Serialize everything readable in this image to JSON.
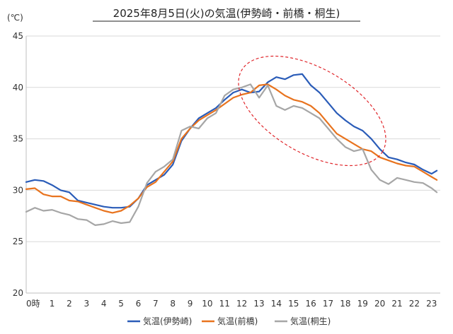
{
  "chart_data": {
    "type": "line",
    "title": "2025年8月5日(火)の気温(伊勢崎・前橋・桐生)",
    "unit_label": "(℃)",
    "ylim": [
      20,
      45
    ],
    "yticks": [
      "20",
      "25",
      "30",
      "35",
      "40",
      "45"
    ],
    "xlim": [
      0,
      24
    ],
    "xticks": [
      "0時",
      "1",
      "2",
      "3",
      "4",
      "5",
      "6",
      "7",
      "8",
      "9",
      "10",
      "11",
      "12",
      "13",
      "14",
      "15",
      "16",
      "17",
      "18",
      "19",
      "20",
      "21",
      "22",
      "23"
    ],
    "grid": "horizontal",
    "legend_position": "bottom",
    "annotation": "dashed-red-ellipse",
    "series": [
      {
        "name": "気温(伊勢崎)",
        "color": "#2a5cb8",
        "x": [
          0,
          0.5,
          1,
          1.5,
          2,
          2.5,
          3,
          3.5,
          4,
          4.5,
          5,
          5.5,
          6,
          6.5,
          7,
          7.5,
          8,
          8.5,
          9,
          9.5,
          10,
          10.5,
          11,
          11.5,
          12,
          12.5,
          13,
          13.5,
          14,
          14.5,
          15,
          15.5,
          16,
          16.5,
          17,
          17.5,
          18,
          18.5,
          19,
          19.5,
          20,
          20.5,
          21,
          21.5,
          22,
          22.5,
          23,
          23.5,
          23.8
        ],
        "y": [
          30.8,
          31.0,
          30.9,
          30.5,
          30.0,
          29.8,
          29.0,
          28.8,
          28.6,
          28.4,
          28.3,
          28.3,
          28.4,
          29.2,
          30.5,
          31.0,
          31.5,
          32.5,
          34.8,
          36.0,
          37.0,
          37.5,
          38.0,
          38.8,
          39.5,
          39.8,
          39.5,
          39.6,
          40.5,
          41.0,
          40.8,
          41.2,
          41.3,
          40.2,
          39.5,
          38.5,
          37.5,
          36.8,
          36.2,
          35.8,
          35.0,
          34.0,
          33.2,
          33.0,
          32.7,
          32.5,
          32.0,
          31.6,
          31.9
        ]
      },
      {
        "name": "気温(前橋)",
        "color": "#e8731e",
        "x": [
          0,
          0.5,
          1,
          1.5,
          2,
          2.5,
          3,
          3.5,
          4,
          4.5,
          5,
          5.5,
          6,
          6.5,
          7,
          7.5,
          8,
          8.5,
          9,
          9.5,
          10,
          10.5,
          11,
          11.5,
          12,
          12.5,
          13,
          13.5,
          14,
          14.5,
          15,
          15.5,
          16,
          16.5,
          17,
          17.5,
          18,
          18.5,
          19,
          19.5,
          20,
          20.5,
          21,
          21.5,
          22,
          22.5,
          23,
          23.5,
          23.8
        ],
        "y": [
          30.1,
          30.2,
          29.6,
          29.4,
          29.4,
          29.0,
          28.9,
          28.6,
          28.3,
          28.0,
          27.8,
          28.0,
          28.5,
          29.2,
          30.3,
          30.8,
          31.8,
          32.8,
          35.0,
          36.0,
          36.8,
          37.3,
          37.8,
          38.4,
          39.0,
          39.3,
          39.5,
          40.2,
          40.3,
          39.8,
          39.2,
          38.8,
          38.6,
          38.2,
          37.5,
          36.5,
          35.5,
          35.0,
          34.5,
          34.0,
          33.8,
          33.2,
          32.9,
          32.6,
          32.4,
          32.3,
          31.8,
          31.3,
          31.0
        ]
      },
      {
        "name": "気温(桐生)",
        "color": "#a6a6a6",
        "x": [
          0,
          0.5,
          1,
          1.5,
          2,
          2.5,
          3,
          3.5,
          4,
          4.5,
          5,
          5.5,
          6,
          6.5,
          7,
          7.5,
          8,
          8.5,
          9,
          9.5,
          10,
          10.5,
          11,
          11.5,
          12,
          12.5,
          13,
          13.5,
          14,
          14.5,
          15,
          15.5,
          16,
          16.5,
          17,
          17.5,
          18,
          18.5,
          19,
          19.5,
          20,
          20.5,
          21,
          21.5,
          22,
          22.5,
          23,
          23.5,
          23.8
        ],
        "y": [
          27.9,
          28.3,
          28.0,
          28.1,
          27.8,
          27.6,
          27.2,
          27.1,
          26.6,
          26.7,
          27.0,
          26.8,
          26.9,
          28.4,
          30.7,
          31.8,
          32.3,
          33.0,
          35.8,
          36.2,
          36.0,
          37.0,
          37.5,
          39.2,
          39.8,
          40.0,
          40.3,
          39.0,
          40.2,
          38.2,
          37.8,
          38.2,
          38.0,
          37.5,
          37.0,
          36.0,
          35.0,
          34.2,
          33.8,
          34.0,
          32.0,
          31.0,
          30.6,
          31.2,
          31.0,
          30.8,
          30.7,
          30.2,
          29.8
        ]
      }
    ]
  }
}
